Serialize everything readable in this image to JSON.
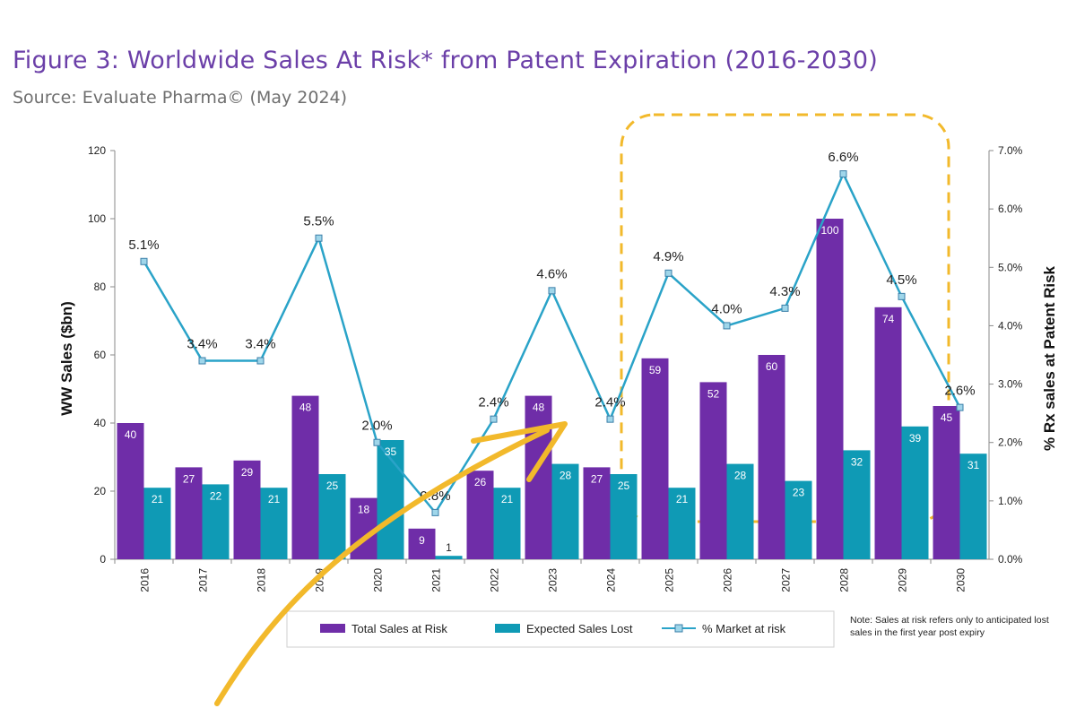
{
  "figure": {
    "title": "Figure 3: Worldwide Sales At Risk* from Patent Expiration (2016-2030)",
    "source": "Source: Evaluate Pharma© (May 2024)",
    "note": "Note: Sales at risk refers only to anticipated lost sales in the first year post expiry"
  },
  "colors": {
    "total": "#6f2da8",
    "lost": "#0f9ab5",
    "line": "#2aa3c8",
    "highlight": "#f2b92b",
    "title": "#6b3fa8"
  },
  "chart_data": {
    "type": "bar",
    "categories": [
      "2016",
      "2017",
      "2018",
      "2019",
      "2020",
      "2021",
      "2022",
      "2023",
      "2024",
      "2025",
      "2026",
      "2027",
      "2028",
      "2029",
      "2030"
    ],
    "series": [
      {
        "name": "Total Sales at Risk",
        "axis": "left",
        "values": [
          40,
          27,
          29,
          48,
          18,
          9,
          26,
          48,
          27,
          59,
          52,
          60,
          100,
          74,
          45
        ]
      },
      {
        "name": "Expected Sales Lost",
        "axis": "left",
        "values": [
          21,
          22,
          21,
          25,
          35,
          1,
          21,
          28,
          25,
          21,
          28,
          23,
          32,
          39,
          31
        ]
      },
      {
        "name": "% Market at risk",
        "type": "line",
        "axis": "right",
        "values": [
          5.1,
          3.4,
          3.4,
          5.5,
          2.0,
          0.8,
          2.4,
          4.6,
          2.4,
          4.9,
          4.0,
          4.3,
          6.6,
          4.5,
          2.6
        ],
        "labels": [
          "5.1%",
          "3.4%",
          "3.4%",
          "5.5%",
          "2.0%",
          "0.8%",
          "2.4%",
          "4.6%",
          "2.4%",
          "4.9%",
          "4.0%",
          "4.3%",
          "6.6%",
          "4.5%",
          "2.6%"
        ]
      }
    ],
    "ylabel": "WW Sales ($bn)",
    "y2label": "% Rx sales at Patent Risk",
    "ylim": [
      0,
      120
    ],
    "yticks": [
      "0",
      "20",
      "40",
      "60",
      "80",
      "100",
      "120"
    ],
    "y2lim": [
      0,
      7
    ],
    "y2ticks": [
      "0.0%",
      "1.0%",
      "2.0%",
      "3.0%",
      "4.0%",
      "5.0%",
      "6.0%",
      "7.0%"
    ],
    "legend": "bottom",
    "grid": false,
    "highlight_range": [
      "2025",
      "2029"
    ]
  }
}
